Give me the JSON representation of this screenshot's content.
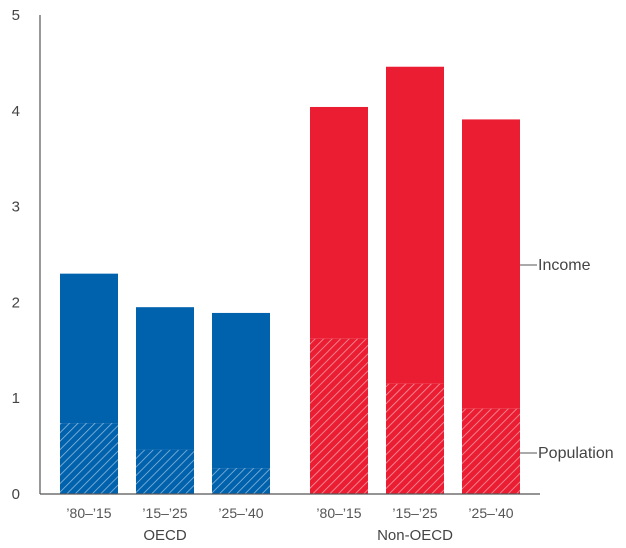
{
  "chart_data": {
    "type": "bar",
    "stacked": true,
    "title": "",
    "ylim": [
      0,
      5
    ],
    "yticks": [
      0,
      1,
      2,
      3,
      4,
      5
    ],
    "grid": false,
    "groups": [
      {
        "name": "OECD",
        "categories": [
          "’80–’15",
          "’15–’25",
          "’25–’40"
        ]
      },
      {
        "name": "Non-OECD",
        "categories": [
          "’80–’15",
          "’15–’25",
          "’25–’40"
        ]
      }
    ],
    "series": [
      {
        "name": "Population",
        "values": [
          0.74,
          0.46,
          0.27,
          1.62,
          1.15,
          0.89
        ]
      },
      {
        "name": "Income",
        "values": [
          1.56,
          1.49,
          1.62,
          2.42,
          3.31,
          3.02
        ]
      }
    ],
    "totals": [
      2.3,
      1.95,
      1.89,
      4.04,
      4.46,
      3.91
    ],
    "annotations": [
      "Income",
      "Population"
    ],
    "colors": {
      "OECD": "#0061ad",
      "Non-OECD": "#ea1d32",
      "axis": "#555555",
      "text": "#444444"
    }
  }
}
